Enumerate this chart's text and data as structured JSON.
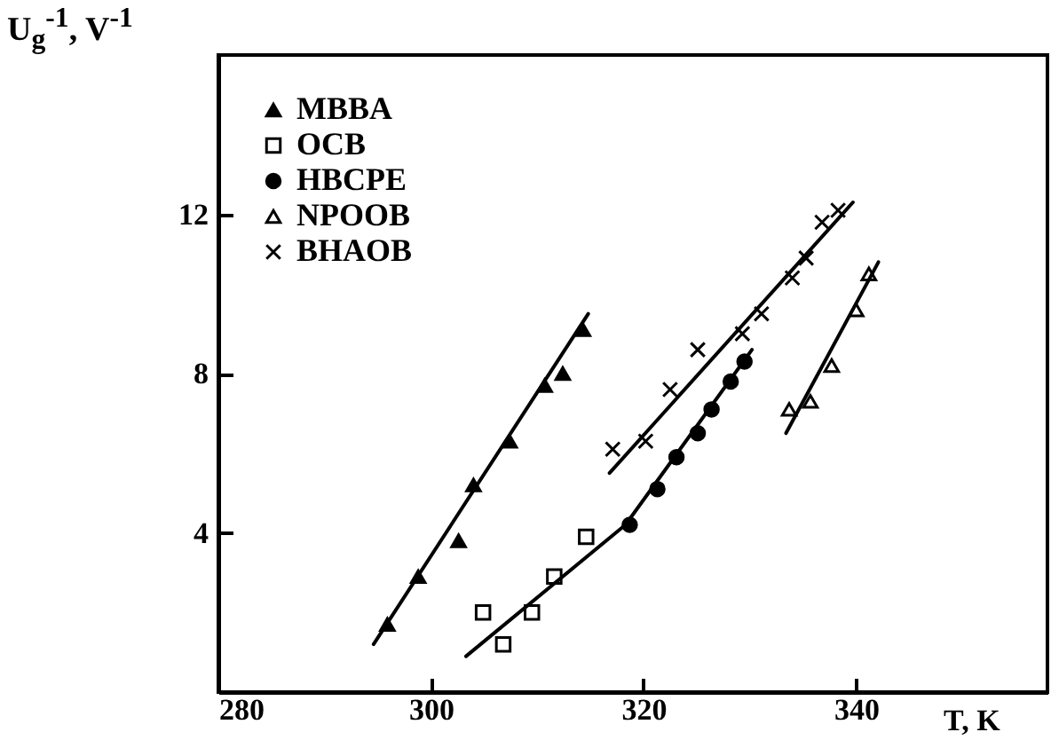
{
  "chart_data": {
    "type": "scatter",
    "xlabel": "T, K",
    "ylabel": "U$_{g}$$^{-1}$, V$^{-1}$",
    "xlim": [
      280,
      358
    ],
    "ylim": [
      0,
      16
    ],
    "xticks": [
      280,
      300,
      320,
      340
    ],
    "yticks": [
      4,
      8,
      12
    ],
    "grid": false,
    "legend": "top left",
    "series": [
      {
        "name": "MBBA",
        "marker": "triangle",
        "color": "#000000",
        "x": [
          295.9,
          298.8,
          302.6,
          304.0,
          307.4,
          310.7,
          312.4,
          314.3
        ],
        "values": [
          1.7,
          2.9,
          3.8,
          5.2,
          6.3,
          7.7,
          8.0,
          9.1
        ]
      },
      {
        "name": "OCB",
        "marker": "square-open",
        "color": "#000000",
        "x": [
          304.9,
          306.8,
          309.5,
          311.6,
          314.6
        ],
        "values": [
          2.0,
          1.2,
          2.0,
          2.9,
          3.9
        ]
      },
      {
        "name": "HBCPE",
        "marker": "circle",
        "color": "#000000",
        "x": [
          318.7,
          321.3,
          323.1,
          325.1,
          326.4,
          328.2,
          329.5
        ],
        "values": [
          4.2,
          5.1,
          5.9,
          6.5,
          7.1,
          7.8,
          8.3
        ]
      },
      {
        "name": "NPOOB",
        "marker": "triangle-open",
        "color": "#000000",
        "x": [
          333.7,
          335.7,
          337.7,
          340.0,
          341.2
        ],
        "values": [
          7.1,
          7.3,
          8.2,
          9.6,
          10.5
        ]
      },
      {
        "name": "BHAOB",
        "marker": "cross",
        "color": "#000000",
        "x": [
          317.1,
          320.2,
          322.5,
          325.1,
          329.3,
          331.1,
          334.0,
          335.3,
          336.8,
          338.3
        ],
        "values": [
          6.1,
          6.3,
          7.6,
          8.6,
          9.0,
          9.5,
          10.4,
          10.9,
          11.8,
          12.1
        ]
      },
      {
        "type": "line",
        "color": "#000000",
        "x": [
          294.6,
          314.8
        ],
        "values": [
          1.2,
          9.5
        ]
      },
      {
        "type": "line",
        "color": "#000000",
        "x": [
          303.3,
          318.3,
          330.2
        ],
        "values": [
          0.9,
          4.2,
          8.6
        ]
      },
      {
        "type": "line",
        "color": "#000000",
        "x": [
          316.8,
          339.7
        ],
        "values": [
          5.5,
          12.3
        ]
      },
      {
        "type": "line",
        "color": "#000000",
        "x": [
          333.4,
          342.1
        ],
        "values": [
          6.5,
          10.8
        ]
      }
    ]
  }
}
